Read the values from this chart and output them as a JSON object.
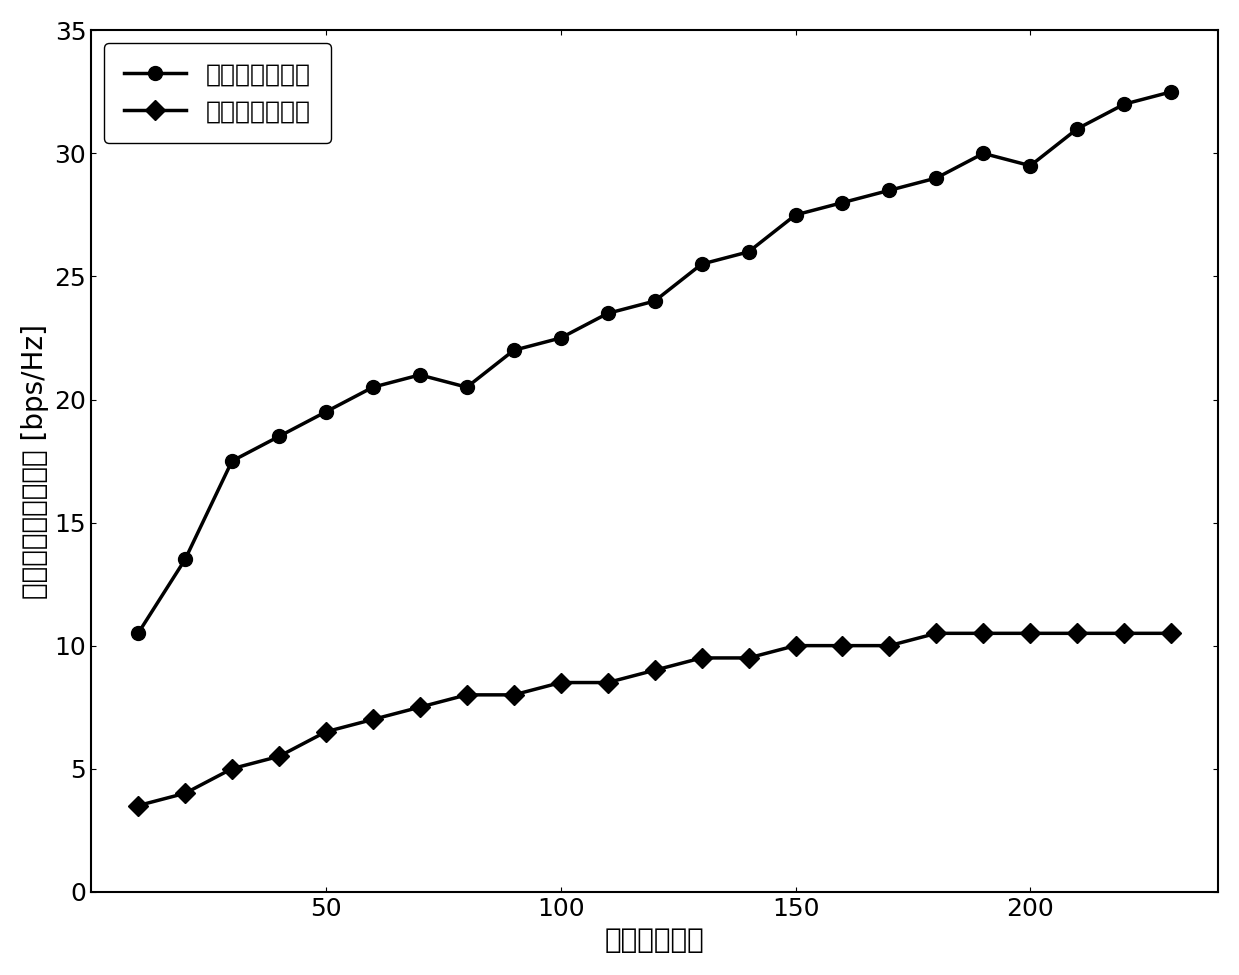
{
  "line1_label": "本发明所提方案",
  "line2_label": "单天线用户方案",
  "line1_x": [
    10,
    20,
    30,
    40,
    50,
    60,
    70,
    80,
    90,
    100,
    110,
    120,
    130,
    140,
    150,
    160,
    170,
    180,
    190,
    200,
    210,
    220,
    230
  ],
  "line1_y": [
    10.5,
    13.5,
    17.5,
    18.5,
    19.5,
    20.5,
    21.0,
    20.5,
    22.0,
    22.5,
    23.5,
    24.0,
    25.5,
    26.0,
    27.5,
    28.0,
    28.5,
    29.0,
    30.0,
    29.5,
    31.0,
    32.0,
    32.5
  ],
  "line2_x": [
    10,
    20,
    30,
    40,
    50,
    60,
    70,
    80,
    90,
    100,
    110,
    120,
    130,
    140,
    150,
    160,
    170,
    180,
    190,
    200,
    210,
    220,
    230
  ],
  "line2_y": [
    3.5,
    4.0,
    5.0,
    5.5,
    6.5,
    7.0,
    7.5,
    8.0,
    8.0,
    8.5,
    8.5,
    9.0,
    9.5,
    9.5,
    10.0,
    10.0,
    10.0,
    10.5,
    10.5,
    10.5,
    10.5,
    10.5,
    10.5
  ],
  "xlabel": "平台天线数目",
  "ylabel": "每个平台的可达速率 [bps/Hz]",
  "xlim": [
    0,
    240
  ],
  "ylim": [
    0,
    35
  ],
  "xticks": [
    50,
    100,
    150,
    200
  ],
  "yticks": [
    0,
    5,
    10,
    15,
    20,
    25,
    30,
    35
  ],
  "line_color": "#000000",
  "marker1": "o",
  "marker2": "D",
  "markersize": 10,
  "linewidth": 2.5,
  "legend_fontsize": 18,
  "axis_fontsize": 20,
  "tick_fontsize": 18,
  "background_color": "#ffffff"
}
